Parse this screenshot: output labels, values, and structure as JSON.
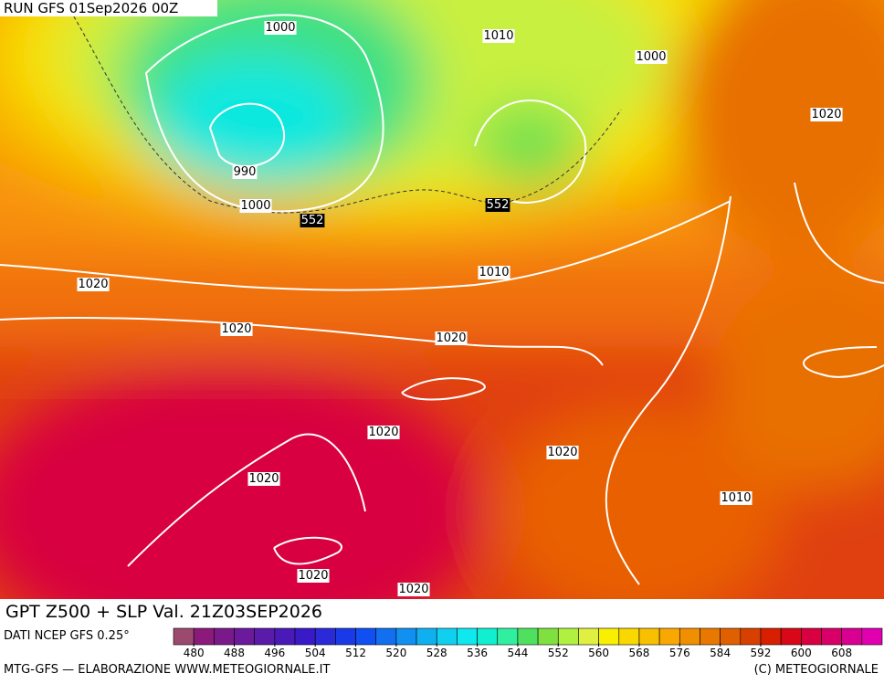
{
  "header": {
    "run": "RUN GFS 01Sep2026 00Z"
  },
  "map": {
    "isobar_labels": [
      "1000",
      "1010",
      "1000",
      "1020",
      "990",
      "1000",
      "552",
      "552",
      "1020",
      "1010",
      "1020",
      "1020",
      "1020",
      "1020",
      "1020",
      "1010",
      "1020",
      "1020"
    ]
  },
  "footer": {
    "title": "GPT Z500 + SLP Val. 21Z03SEP2026",
    "source": "DATI NCEP GFS 0.25°",
    "credit_left": "MTG-GFS — ELABORAZIONE WWW.METEOGIORNALE.IT",
    "credit_right": "(C) METEOGIORNALE"
  },
  "colorbar": {
    "lim": [
      476,
      616
    ],
    "ticks": [
      480,
      488,
      496,
      504,
      512,
      520,
      528,
      536,
      544,
      552,
      560,
      568,
      576,
      584,
      592,
      600,
      608
    ],
    "colors": [
      "#9b4a6e",
      "#8b1a7a",
      "#7a1a8a",
      "#6a1a9a",
      "#5a1aaa",
      "#4a1ab8",
      "#3a1ac8",
      "#2a2ad8",
      "#1a3ae8",
      "#1050f0",
      "#1070f0",
      "#1090f0",
      "#10b0f0",
      "#10d0f0",
      "#10e8f0",
      "#10f0d0",
      "#30f0a0",
      "#50e060",
      "#80e040",
      "#b0f040",
      "#e0f040",
      "#f8f000",
      "#f8d800",
      "#f8c000",
      "#f8a800",
      "#f09000",
      "#e87800",
      "#e06000",
      "#d84000",
      "#d82000",
      "#d80818",
      "#d80040",
      "#d80068",
      "#d80090",
      "#e000b0"
    ]
  }
}
